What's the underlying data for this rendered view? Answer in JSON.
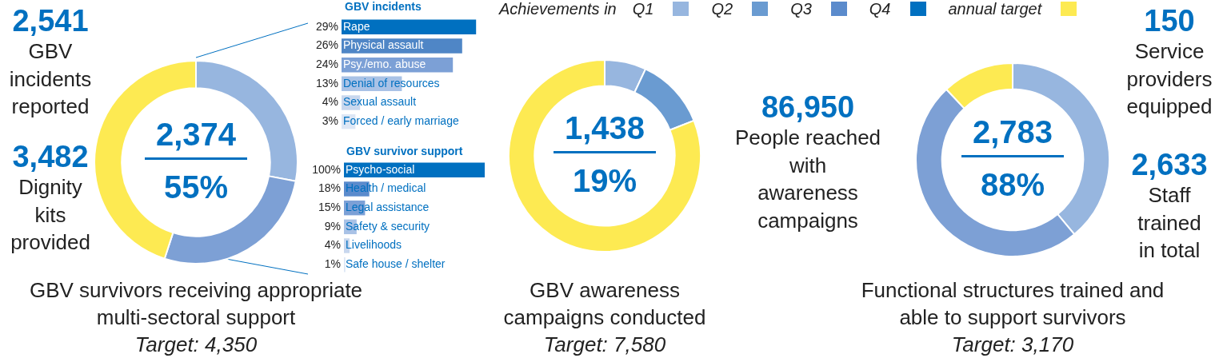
{
  "chart_data": [
    {
      "type": "other",
      "annotations": [
        "2,541",
        "GBV\nincidents\nreported",
        "3,482",
        "Dignity\nkits\nprovided",
        "86,950",
        "People reached\nwith\nawareness\ncampaigns",
        "150",
        "Service\nproviders\nequipped",
        "2,633",
        "Staff\ntrained\nin total"
      ]
    },
    {
      "type": "donut",
      "title": "GBV survivors receiving appropriate multi-sectoral support",
      "subtitle": "Target: 4,350",
      "categories": [
        null,
        null,
        null,
        null,
        null
      ],
      "values": [
        28,
        27,
        0,
        0,
        45
      ],
      "colors": [
        "#97b6df",
        "#7da0d5",
        "#5b8bcc",
        "#0070c0",
        "#fdea52"
      ],
      "annotations": [
        "2,374",
        "55%"
      ]
    },
    {
      "type": "bar",
      "orientation": "horizontal",
      "title": "GBV incidents",
      "categories": [
        "Rape",
        "Physical assault",
        "Psy./emo. abuse",
        "Denial of resources",
        "Sexual assault",
        "Forced / early marriage"
      ],
      "values": [
        29,
        26,
        24,
        13,
        4,
        3
      ],
      "value_labels": [
        "29%",
        "26%",
        "24%",
        "13%",
        "4%",
        "3%"
      ],
      "colors": [
        "#0070c0",
        "#4f86c6",
        "#7ca0d6",
        "#a9c2e6",
        "#c8d7ee",
        "#dde7f5"
      ],
      "tick_labels": false
    },
    {
      "type": "bar",
      "orientation": "horizontal",
      "title": "GBV survivor support",
      "categories": [
        "Psycho-social",
        "Health / medical",
        "Legal assistance",
        "Safety & security",
        "Livelihoods",
        "Safe house / shelter"
      ],
      "values": [
        100,
        18,
        15,
        9,
        4,
        1
      ],
      "value_labels": [
        "100%",
        "18%",
        "15%",
        "9%",
        "4%",
        "1%"
      ],
      "colors": [
        "#0070c0",
        "#5b8bcc",
        "#7ca0d6",
        "#a9c2e6",
        "#c8d7ee",
        "#dde7f5"
      ],
      "tick_labels": false
    },
    {
      "type": "donut",
      "title": "GBV awareness campaigns conducted",
      "subtitle": "Target: 7,580",
      "categories": [
        "Q1",
        "Q2",
        "Q3",
        "Q4",
        "annual target"
      ],
      "values": [
        7,
        12,
        0,
        0,
        81
      ],
      "colors": [
        "#97b6df",
        "#6a9bd1",
        "#5b8bcc",
        "#0070c0",
        "#fdea52"
      ],
      "annotations": [
        "1,438",
        "19%"
      ],
      "legend": "top",
      "legend_title": "Achievements in"
    },
    {
      "type": "donut",
      "title": "Functional structures trained and able to support survivors",
      "subtitle": "Target: 3,170",
      "categories": [
        null,
        null,
        null,
        null,
        null
      ],
      "values": [
        39,
        49,
        0,
        0,
        12
      ],
      "colors": [
        "#97b6df",
        "#7da0d5",
        "#5b8bcc",
        "#0070c0",
        "#fdea52"
      ],
      "annotations": [
        "2,783",
        "88%"
      ]
    }
  ]
}
